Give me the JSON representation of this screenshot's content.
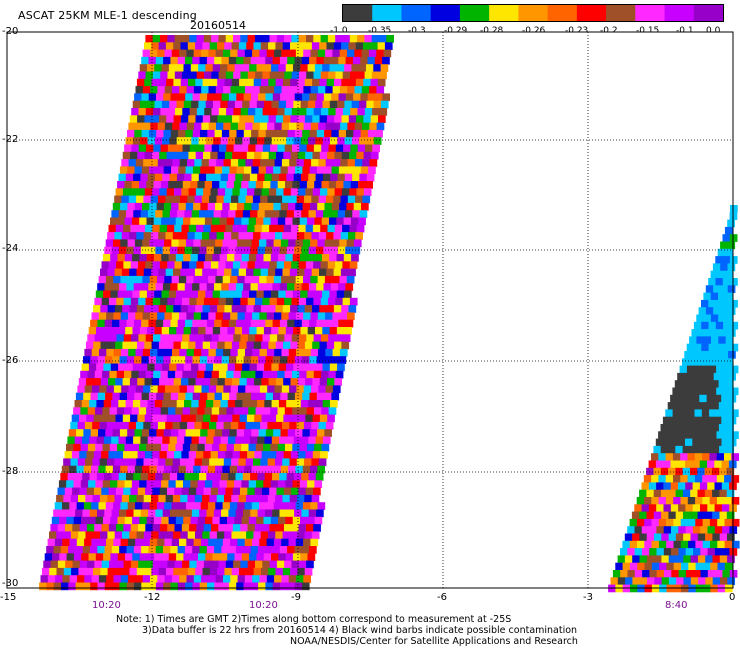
{
  "title": "ASCAT 25KM MLE-1 descending",
  "date": "20160514",
  "colorbar": {
    "colors": [
      "#3c3c3c",
      "#00c8ff",
      "#0064ff",
      "#0000e0",
      "#00b400",
      "#ffe600",
      "#ff9600",
      "#ff6400",
      "#ff0000",
      "#a05028",
      "#ff28ff",
      "#c800ff",
      "#9600c8"
    ],
    "labels": [
      "-1.0",
      "-0.35",
      "-0.3",
      "-0.29",
      "-0.28",
      "-0.26",
      "-0.23",
      "-0.2",
      "-0.15",
      "-0.1",
      "0.0"
    ]
  },
  "axes": {
    "lat_labels": [
      "-20",
      "-22",
      "-24",
      "-26",
      "-28",
      "-30"
    ],
    "lon_labels": [
      "-15",
      "-12",
      "-9",
      "-6",
      "-3",
      "0"
    ],
    "time_labels": [
      "10:20",
      "10:20",
      "8:40"
    ]
  },
  "notes": [
    "Note: 1) Times are GMT 2)Times along bottom correspond to measurement at -25S",
    "3)Data buffer is 22 hrs from 20160514 4) Black wind barbs indicate possible contamination",
    "NOAA/NESDIS/Center for Satellite Applications and Research"
  ]
}
